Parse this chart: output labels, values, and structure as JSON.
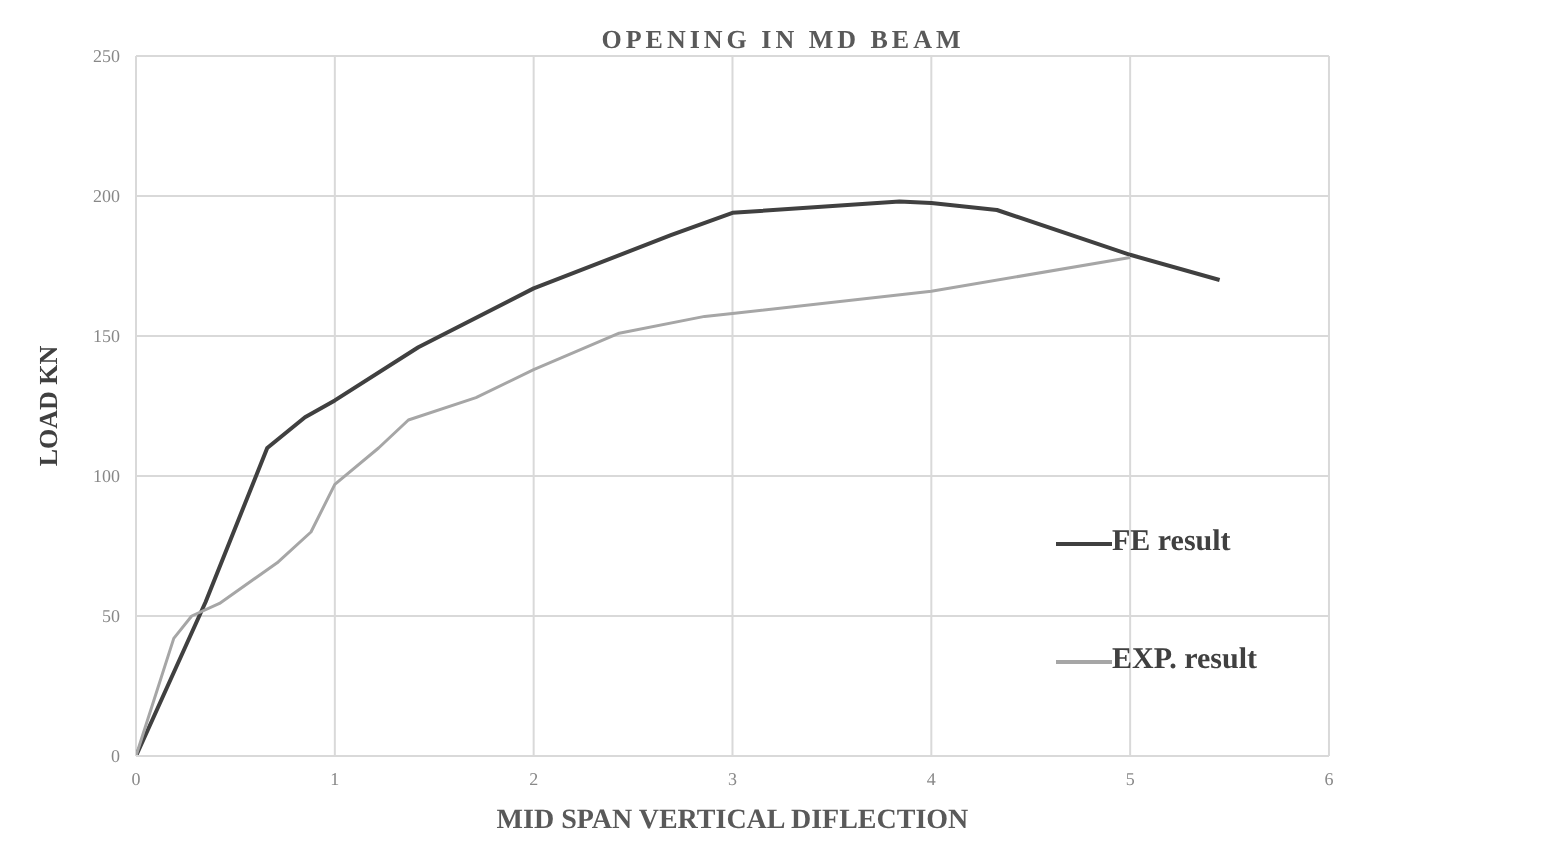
{
  "chart_data": {
    "type": "line",
    "title": "OPENING IN  MD BEAM",
    "xlabel": "MID SPAN VERTICAL DIFLECTION",
    "ylabel": "LOAD KN",
    "xlim": [
      0,
      6
    ],
    "xticks": [
      0,
      1,
      2,
      3,
      4,
      5,
      6
    ],
    "ylim": [
      0,
      250
    ],
    "yticks": [
      0,
      50,
      100,
      150,
      200,
      250
    ],
    "grid": true,
    "legend": "right",
    "marker": "none",
    "line_style": "solid",
    "series": [
      {
        "name": "FE result",
        "color": "#404040",
        "x": [
          0,
          0.35,
          0.66,
          0.85,
          1.0,
          1.42,
          2.0,
          2.69,
          3.0,
          3.84,
          4.0,
          4.33,
          5.0,
          5.45
        ],
        "values": [
          0,
          55,
          110,
          121,
          127,
          146,
          167,
          186,
          194,
          198,
          197.5,
          195,
          179,
          170
        ]
      },
      {
        "name": "EXP. result",
        "color": "#a6a6a6",
        "x": [
          0,
          0.19,
          0.28,
          0.42,
          0.71,
          0.88,
          1.0,
          1.22,
          1.37,
          1.71,
          2.0,
          2.43,
          2.86,
          3.0,
          4.0,
          5.0
        ],
        "values": [
          0,
          42,
          50,
          54.5,
          69,
          80,
          97,
          110,
          120,
          128,
          138,
          151,
          157,
          158,
          166,
          178
        ]
      }
    ]
  }
}
